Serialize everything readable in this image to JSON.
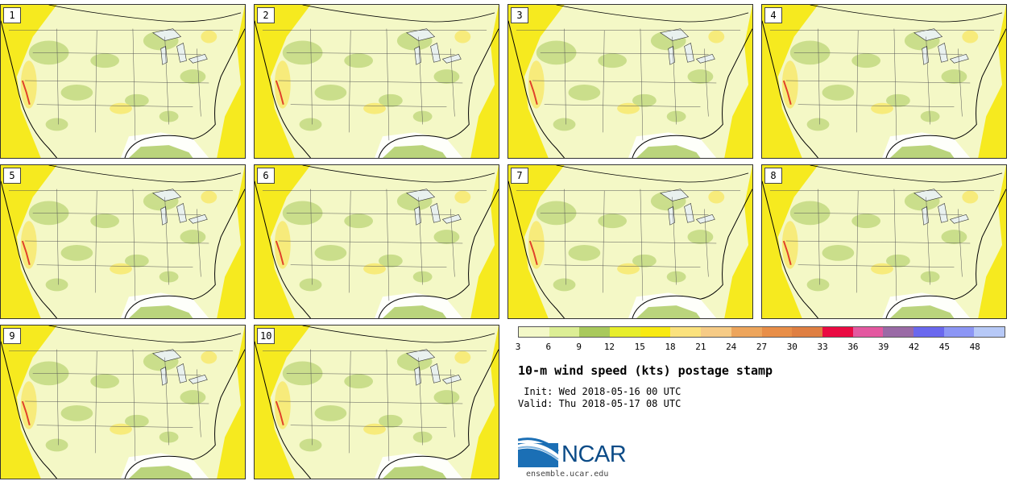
{
  "panels": [
    {
      "label": "1"
    },
    {
      "label": "2"
    },
    {
      "label": "3"
    },
    {
      "label": "4"
    },
    {
      "label": "5"
    },
    {
      "label": "6"
    },
    {
      "label": "7"
    },
    {
      "label": "8"
    },
    {
      "label": "9"
    },
    {
      "label": "10"
    }
  ],
  "colorbar": {
    "colors": [
      "#f3f8c8",
      "#dcee95",
      "#a9c95c",
      "#e7ee2c",
      "#f8ea12",
      "#fbe27d",
      "#f6cb86",
      "#eda55c",
      "#e88e48",
      "#df7f42",
      "#ea0a42",
      "#e358a0",
      "#9a6aa6",
      "#6a68ee",
      "#8c96f5",
      "#b7c9f7"
    ],
    "ticks": [
      "3",
      "6",
      "9",
      "12",
      "15",
      "18",
      "21",
      "24",
      "27",
      "30",
      "33",
      "36",
      "39",
      "42",
      "45",
      "48"
    ]
  },
  "title": "10-m wind speed (kts) postage stamp",
  "init": " Init: Wed 2018-05-16 00 UTC",
  "valid": "Valid: Thu 2018-05-17 08 UTC",
  "logo": {
    "text": "NCAR",
    "url_text": "ensemble.ucar.edu"
  }
}
